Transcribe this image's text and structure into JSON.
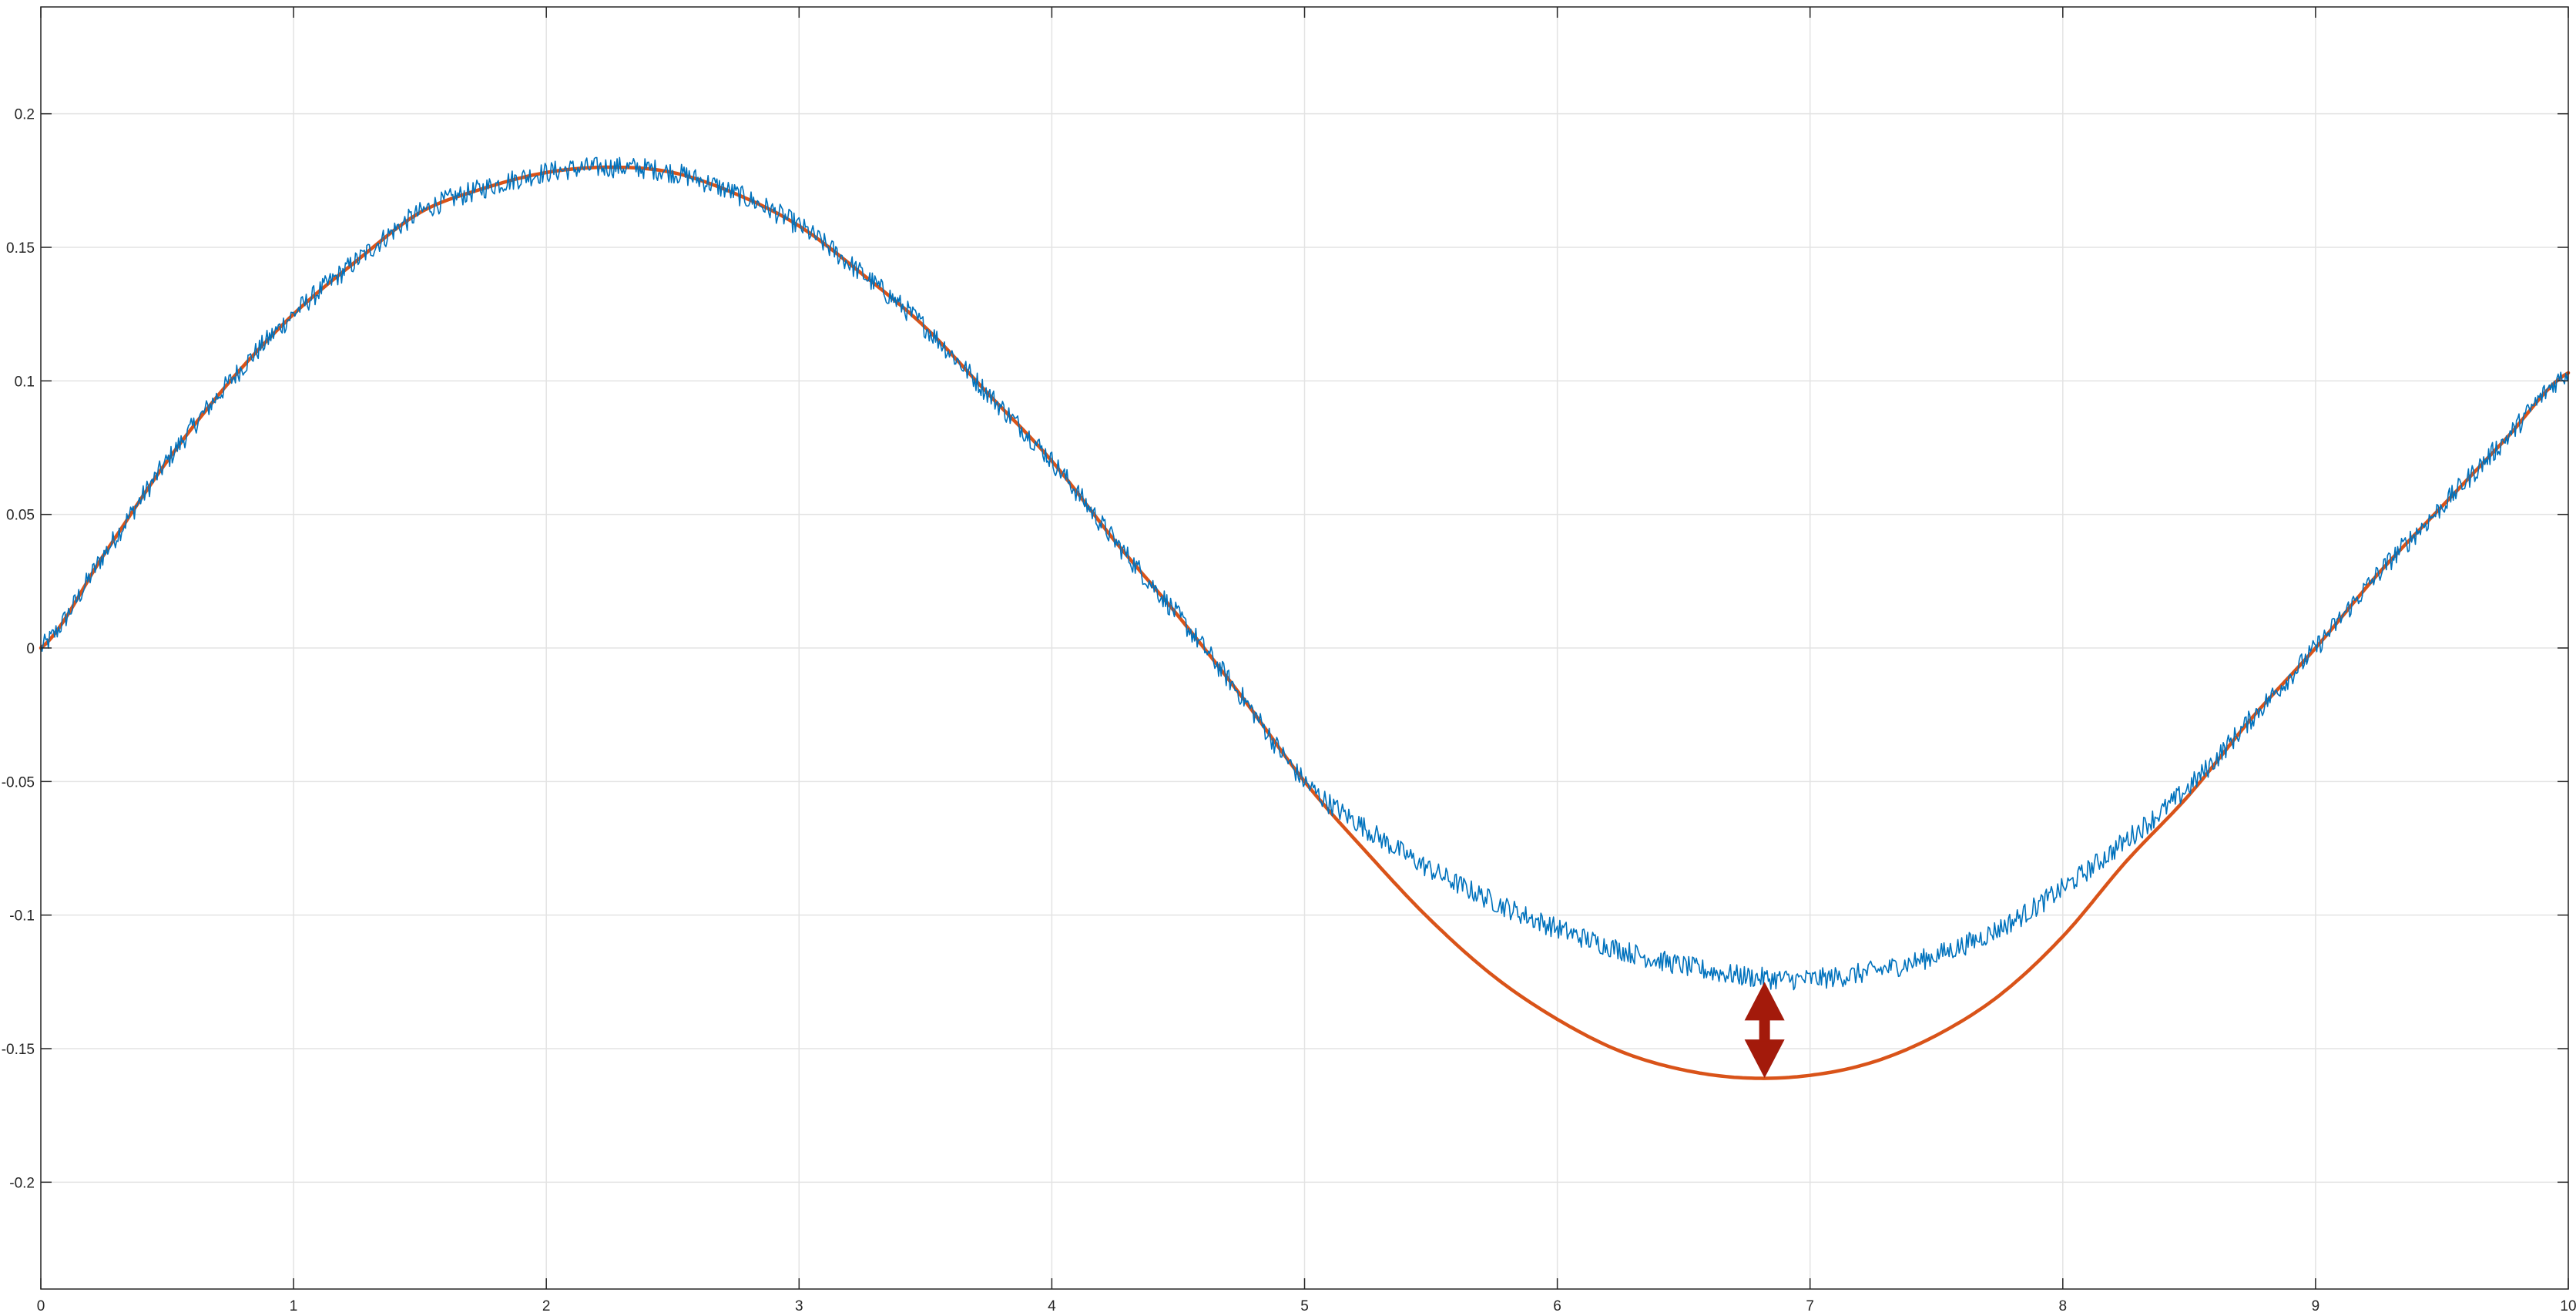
{
  "chart_data": {
    "type": "line",
    "title": "",
    "xlabel": "",
    "ylabel": "",
    "xlim": [
      0,
      10
    ],
    "ylim": [
      -0.24,
      0.24
    ],
    "grid": true,
    "legend": "none",
    "x_ticks": [
      {
        "value": 0,
        "label": "0"
      },
      {
        "value": 1,
        "label": "1"
      },
      {
        "value": 2,
        "label": "2"
      },
      {
        "value": 3,
        "label": "3"
      },
      {
        "value": 4,
        "label": "4"
      },
      {
        "value": 5,
        "label": "5"
      },
      {
        "value": 6,
        "label": "6"
      },
      {
        "value": 7,
        "label": "7"
      },
      {
        "value": 8,
        "label": "8"
      },
      {
        "value": 9,
        "label": "9"
      },
      {
        "value": 10,
        "label": "10"
      }
    ],
    "y_ticks": [
      {
        "value": 0.2,
        "label": "0.2"
      },
      {
        "value": 0.15,
        "label": "0.15"
      },
      {
        "value": 0.1,
        "label": "0.1"
      },
      {
        "value": 0.05,
        "label": "0.05"
      },
      {
        "value": 0,
        "label": "0"
      },
      {
        "value": -0.05,
        "label": "-0.05"
      },
      {
        "value": -0.1,
        "label": "-0.1"
      },
      {
        "value": -0.15,
        "label": "-0.15"
      },
      {
        "value": -0.2,
        "label": "-0.2"
      }
    ],
    "series": [
      {
        "color": "#d95319",
        "style": "smooth",
        "x": [
          0,
          0.25,
          0.5,
          0.75,
          1.0,
          1.25,
          1.5,
          1.75,
          2.0,
          2.25,
          2.5,
          2.75,
          3.0,
          3.25,
          3.5,
          3.75,
          4.0,
          4.25,
          4.5,
          4.75,
          5.0,
          5.25,
          5.5,
          5.75,
          6.0,
          6.25,
          6.5,
          6.75,
          7.0,
          7.25,
          7.5,
          7.75,
          8.0,
          8.25,
          8.5,
          8.75,
          9.0,
          9.25,
          9.5,
          9.75,
          10.0
        ],
        "y": [
          0.0,
          0.035,
          0.07,
          0.1,
          0.125,
          0.145,
          0.163,
          0.172,
          0.178,
          0.18,
          0.178,
          0.17,
          0.158,
          0.14,
          0.12,
          0.095,
          0.07,
          0.04,
          0.012,
          -0.018,
          -0.05,
          -0.077,
          -0.102,
          -0.123,
          -0.139,
          -0.151,
          -0.158,
          -0.161,
          -0.16,
          -0.155,
          -0.145,
          -0.13,
          -0.108,
          -0.08,
          -0.055,
          -0.026,
          0.0,
          0.028,
          0.053,
          0.078,
          0.103
        ]
      },
      {
        "color": "#0072bd",
        "style": "noisy",
        "noise_amplitude": 0.004,
        "x": [
          0,
          0.25,
          0.5,
          0.75,
          1.0,
          1.25,
          1.5,
          1.75,
          2.0,
          2.25,
          2.5,
          2.75,
          3.0,
          3.25,
          3.5,
          3.75,
          4.0,
          4.25,
          4.5,
          4.75,
          5.0,
          5.25,
          5.5,
          5.75,
          6.0,
          6.25,
          6.5,
          6.75,
          7.0,
          7.25,
          7.5,
          7.75,
          8.0,
          8.25,
          8.5,
          8.75,
          9.0,
          9.25,
          9.5,
          9.75,
          10.0
        ],
        "y": [
          0.0,
          0.035,
          0.07,
          0.1,
          0.125,
          0.145,
          0.163,
          0.172,
          0.178,
          0.18,
          0.178,
          0.17,
          0.158,
          0.14,
          0.12,
          0.095,
          0.07,
          0.04,
          0.012,
          -0.018,
          -0.05,
          -0.068,
          -0.083,
          -0.095,
          -0.105,
          -0.113,
          -0.119,
          -0.123,
          -0.124,
          -0.121,
          -0.115,
          -0.105,
          -0.09,
          -0.072,
          -0.052,
          -0.026,
          0.0,
          0.028,
          0.053,
          0.078,
          0.103
        ]
      }
    ],
    "annotation": {
      "type": "double-arrow",
      "color": "#a31a0b",
      "x": 6.82,
      "y_from": -0.125,
      "y_to": -0.161
    }
  }
}
